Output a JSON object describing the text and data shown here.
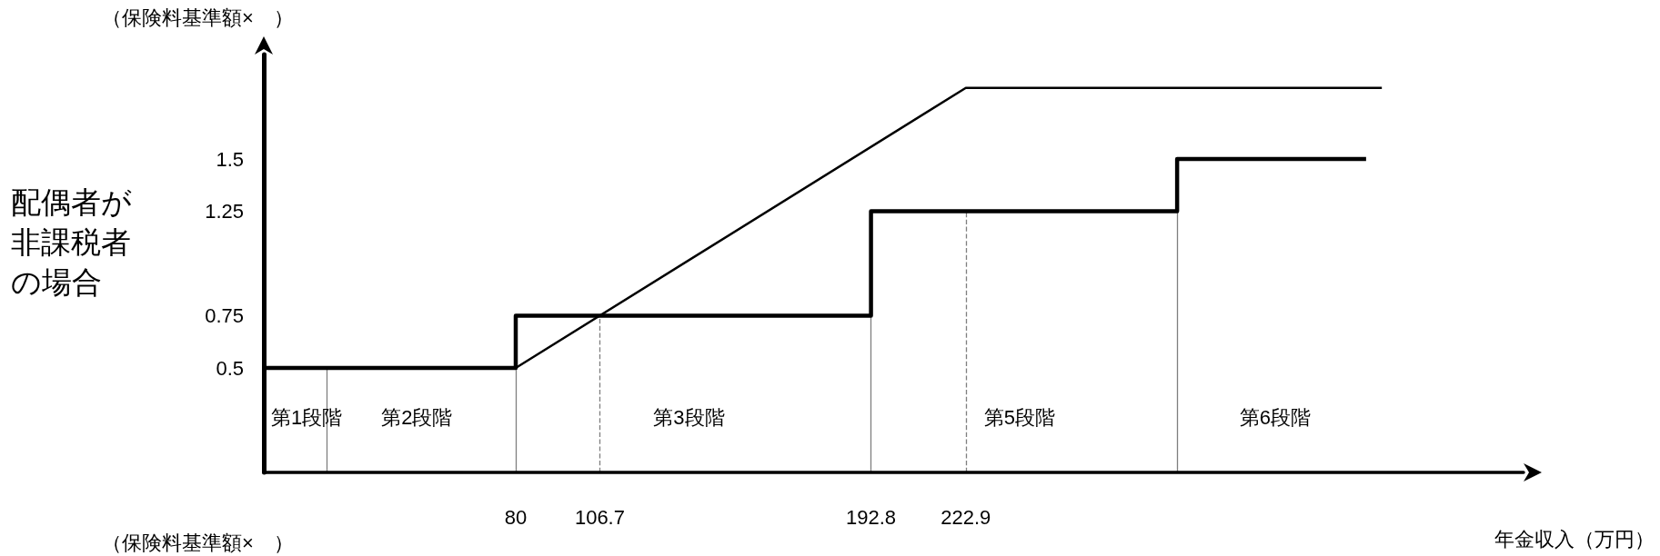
{
  "chart_data": {
    "type": "line",
    "ylabel": "（保険料基準額×　）",
    "xlabel": "年金収入（万円）",
    "xlim": [
      0,
      400
    ],
    "ylim": [
      0,
      2
    ],
    "xticks": [
      80,
      106.7,
      192.8,
      222.9
    ],
    "yticks": [
      0.5,
      0.75,
      1.25,
      1.5
    ],
    "grid": false,
    "marker": "none",
    "series": [
      {
        "type": "step",
        "color": "#000000",
        "x": [
          0,
          80,
          192.8,
          290,
          350
        ],
        "values": [
          0.5,
          0.75,
          1.25,
          1.5,
          1.5
        ]
      },
      {
        "type": "line",
        "color": "#000000",
        "x": [
          80,
          222.9,
          355
        ],
        "values": [
          0.5,
          1.84,
          1.84
        ]
      }
    ],
    "ref_lines": [
      {
        "axis": "x",
        "value": 20,
        "line_style": "solid"
      },
      {
        "axis": "x",
        "value": 80,
        "line_style": "solid"
      },
      {
        "axis": "x",
        "value": 106.7,
        "line_style": "dashed"
      },
      {
        "axis": "x",
        "value": 192.8,
        "line_style": "solid"
      },
      {
        "axis": "x",
        "value": 222.9,
        "line_style": "dashed"
      },
      {
        "axis": "x",
        "value": 290,
        "line_style": "solid"
      }
    ],
    "annotations": [
      "第1段階",
      "第2段階",
      "第3段階",
      "第5段階",
      "第6段階",
      "配偶者が非課税者の場合",
      "（保険料基準額×　）"
    ]
  }
}
